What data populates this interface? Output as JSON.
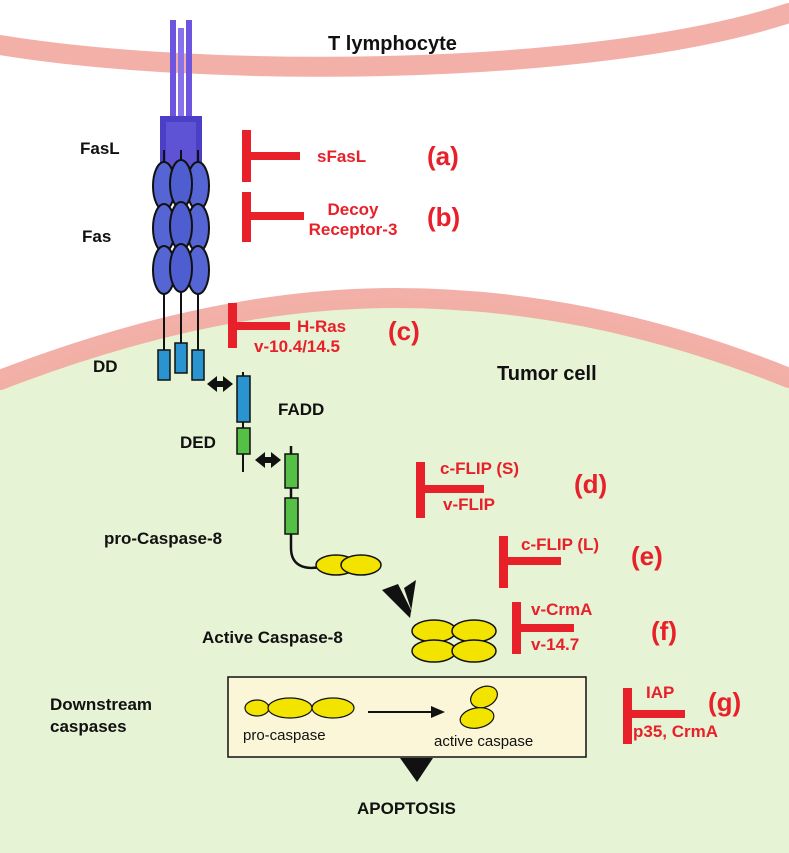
{
  "cells": {
    "t_lymphocyte": "T lymphocyte",
    "tumor_cell": "Tumor cell"
  },
  "molecules": {
    "fasl": "FasL",
    "fas": "Fas",
    "dd": "DD",
    "fadd": "FADD",
    "ded": "DED",
    "pro_caspase_8": "pro-Caspase-8",
    "active_caspase_8": "Active Caspase-8",
    "downstream": [
      "Downstream",
      "caspases"
    ],
    "pro_caspase": "pro-caspase",
    "active_caspase": "active caspase",
    "apoptosis": "APOPTOSIS"
  },
  "inhibitors": [
    {
      "tag": "(a)",
      "lines": [
        "sFasL"
      ]
    },
    {
      "tag": "(b)",
      "lines": [
        "Decoy",
        "Receptor-3"
      ]
    },
    {
      "tag": "(c)",
      "lines": [
        "H-Ras",
        "v-10.4/14.5"
      ]
    },
    {
      "tag": "(d)",
      "lines": [
        "c-FLIP (S)",
        "v-FLIP"
      ]
    },
    {
      "tag": "(e)",
      "lines": [
        "c-FLIP (L)"
      ]
    },
    {
      "tag": "(f)",
      "lines": [
        "v-CrmA",
        "v-14.7"
      ]
    },
    {
      "tag": "(g)",
      "lines": [
        "IAP",
        "p35, CrmA"
      ]
    }
  ],
  "colors": {
    "membrane": "#f2a7a0",
    "tumor_cytoplasm": "#e6f3d5",
    "fasl": "#4b3fc8",
    "fas": "#5566d4",
    "dd_domain": "#2a94d0",
    "ded_domain": "#56c046",
    "caspase": "#f3e400",
    "box_fill": "#fbf6d8",
    "inhibitor": "#e8202a"
  }
}
